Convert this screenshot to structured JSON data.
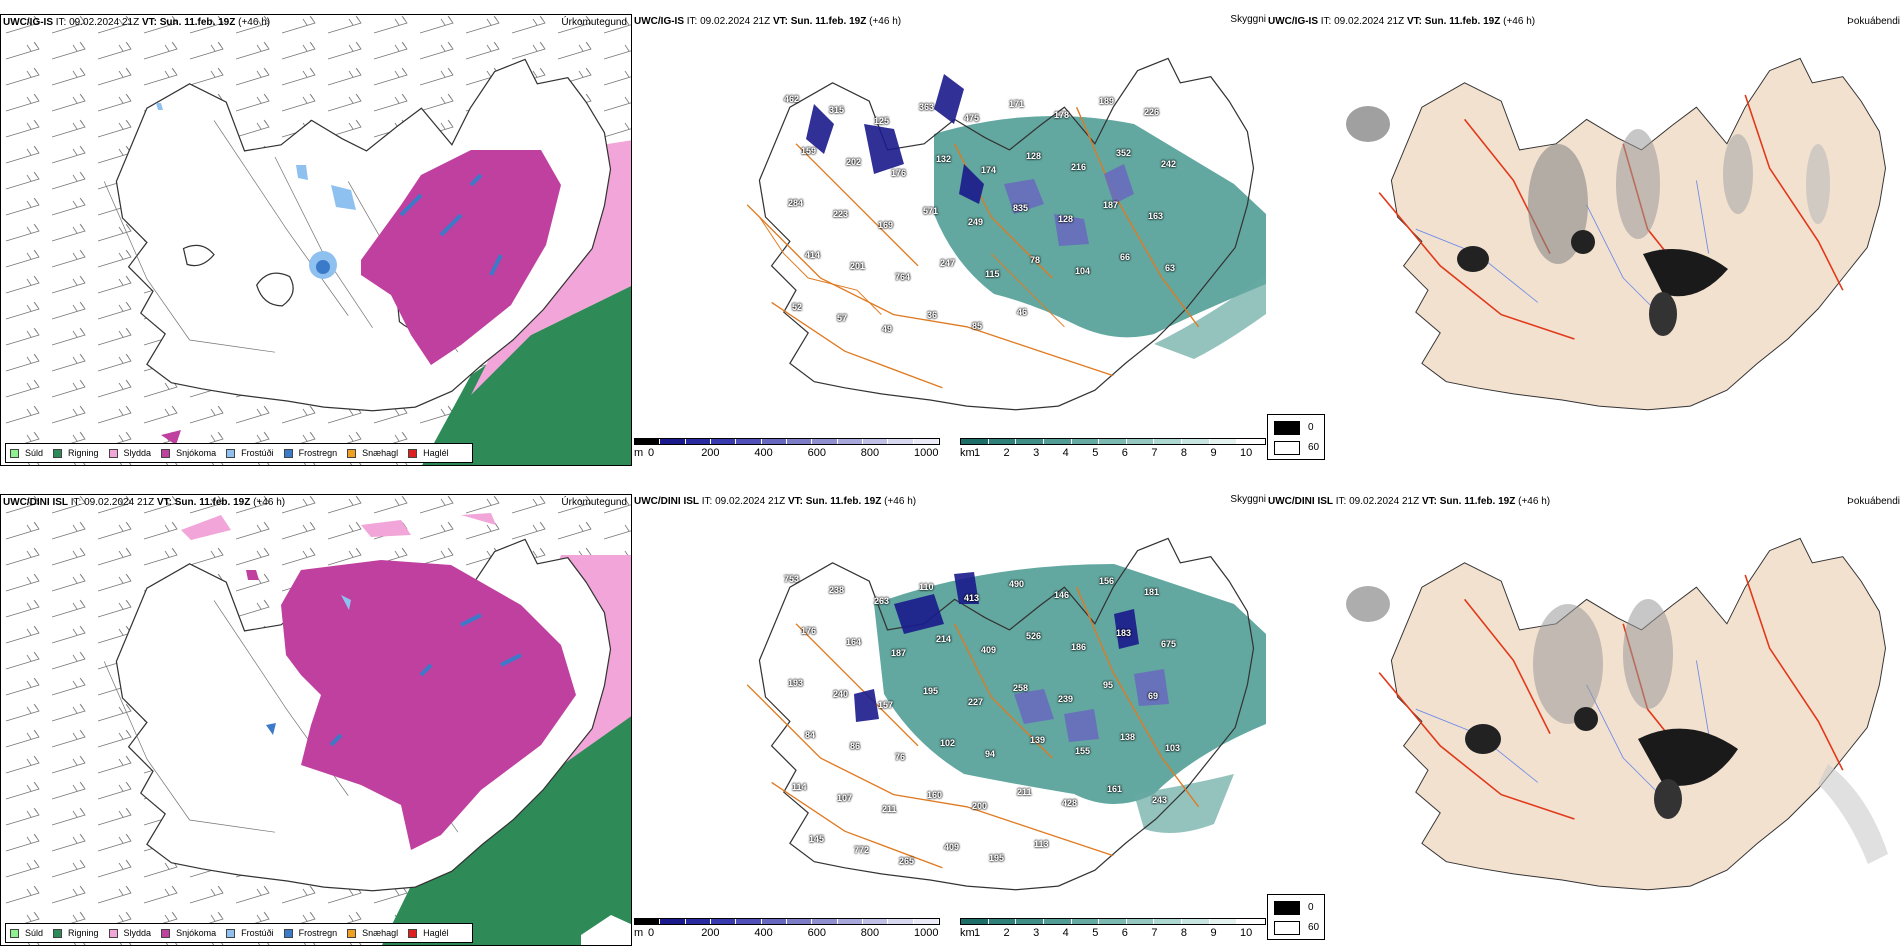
{
  "colors": {
    "drizzle": "#8ef08e",
    "rain": "#2e8b57",
    "sleet": "#f2a5d8",
    "snow": "#c040a0",
    "freezing_drizzle": "#8ec0f0",
    "freezing_rain": "#3a7ac8",
    "snow_grains": "#f0a020",
    "hail": "#e02020",
    "ceiling_dark": "#1a1a8c",
    "vis_teal": "#2e8b80",
    "land_beige": "#f3e1d0",
    "roads": "#e07a20",
    "fog_red": "#e03818",
    "rivers": "#6a8ae8"
  },
  "rows": [
    {
      "id": "top",
      "precip": {
        "model": "UWC/IG-IS",
        "it_label": "IT:",
        "it_value": "09.02.2024 21Z",
        "vt_label": "VT:",
        "vt_value": "Sun. 11.feb. 19Z",
        "lead": "(+46 h)",
        "name": "Úrkomutegund"
      },
      "ceiling": {
        "model": "UWC/IG-IS",
        "it_label": "IT:",
        "it_value": "09.02.2024 21Z",
        "vt_label": "VT:",
        "vt_value": "Sun. 11.feb. 19Z",
        "lead": "(+46 h)",
        "name": "Skyggni",
        "labels": [
          "462",
          "315",
          "125",
          "363",
          "475",
          "171",
          "178",
          "189",
          "226",
          "159",
          "202",
          "176",
          "132",
          "174",
          "128",
          "216",
          "352",
          "242",
          "284",
          "223",
          "169",
          "571",
          "249",
          "835",
          "128",
          "187",
          "163",
          "414",
          "201",
          "764",
          "247",
          "115",
          "78",
          "104",
          "66",
          "63",
          "52",
          "57",
          "49",
          "36",
          "85",
          "46"
        ]
      },
      "fog": {
        "model": "UWC/IG-IS",
        "it_label": "IT:",
        "it_value": "09.02.2024 21Z",
        "vt_label": "VT:",
        "vt_value": "Sun. 11.feb. 19Z",
        "lead": "(+46 h)",
        "name": "Þokuábendi"
      }
    },
    {
      "id": "bottom",
      "precip": {
        "model": "UWC/DINI ISL",
        "it_label": "IT:",
        "it_value": "09.02.2024 21Z",
        "vt_label": "VT:",
        "vt_value": "Sun. 11.feb. 19Z",
        "lead": "(+46 h)",
        "name": "Úrkomutegund"
      },
      "ceiling": {
        "model": "UWC/DINI ISL",
        "it_label": "IT:",
        "it_value": "09.02.2024 21Z",
        "vt_label": "VT:",
        "vt_value": "Sun. 11.feb. 19Z",
        "lead": "(+46 h)",
        "name": "Skyggni",
        "labels": [
          "753",
          "238",
          "263",
          "110",
          "413",
          "490",
          "146",
          "156",
          "181",
          "176",
          "164",
          "187",
          "214",
          "409",
          "526",
          "186",
          "183",
          "675",
          "193",
          "240",
          "157",
          "195",
          "227",
          "258",
          "239",
          "95",
          "69",
          "84",
          "86",
          "76",
          "102",
          "94",
          "139",
          "155",
          "138",
          "103",
          "114",
          "107",
          "211",
          "160",
          "200",
          "211",
          "428",
          "161",
          "243",
          "145",
          "772",
          "265",
          "409",
          "195",
          "113"
        ]
      },
      "fog": {
        "model": "UWC/DINI ISL",
        "it_label": "IT:",
        "it_value": "09.02.2024 21Z",
        "vt_label": "VT:",
        "vt_value": "Sun. 11.feb. 19Z",
        "lead": "(+46 h)",
        "name": "Þokuábendi"
      }
    }
  ],
  "precip_legend": [
    {
      "label": "Súld",
      "color": "#8ef08e"
    },
    {
      "label": "Rigning",
      "color": "#2e8b57"
    },
    {
      "label": "Slydda",
      "color": "#f2a5d8"
    },
    {
      "label": "Snjókoma",
      "color": "#c040a0"
    },
    {
      "label": "Frostúði",
      "color": "#8ec0f0"
    },
    {
      "label": "Frostregn",
      "color": "#3a7ac8"
    },
    {
      "label": "Snæhagl",
      "color": "#f0a020"
    },
    {
      "label": "Haglél",
      "color": "#e02020"
    }
  ],
  "ceiling_scale": {
    "unit": "m",
    "ticks": [
      "0",
      "200",
      "400",
      "600",
      "800",
      "1000"
    ],
    "colors": [
      "#000000",
      "#1a1a8c",
      "#2a2aa0",
      "#3a3ab0",
      "#5050b8",
      "#6868c0",
      "#7c7cc8",
      "#9090d0",
      "#a8a8dc",
      "#c0c0e6",
      "#d8d8f0",
      "#ebebf8"
    ]
  },
  "visibility_scale": {
    "unit": "km",
    "ticks": [
      "1",
      "2",
      "3",
      "4",
      "5",
      "6",
      "7",
      "8",
      "9",
      "10"
    ],
    "colors": [
      "#1e6e68",
      "#2e8078",
      "#3f8f86",
      "#519c94",
      "#66aaa2",
      "#7cb9b1",
      "#94c8c1",
      "#adD7d1",
      "#c8e6e1",
      "#e4f3f0",
      "#ffffff"
    ]
  },
  "fog_scale": {
    "values": [
      "0",
      "60"
    ],
    "colors": [
      "#000000",
      "#ffffff"
    ]
  }
}
